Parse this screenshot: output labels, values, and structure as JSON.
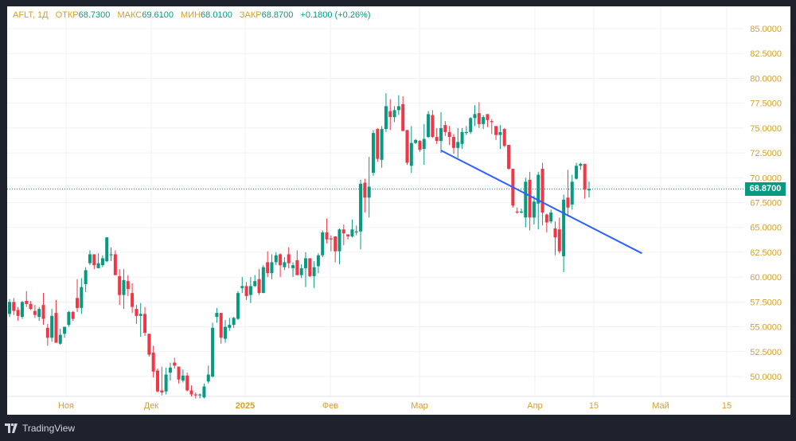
{
  "legend": {
    "symbol": "AFLT, 1Д",
    "open_label": "ОТКР",
    "open": "68.7300",
    "high_label": "МАКС",
    "high": "69.6100",
    "low_label": "МИН",
    "low": "68.0100",
    "close_label": "ЗАКР",
    "close": "68.8700",
    "change": "+0.1800 (+0.26%)"
  },
  "colors": {
    "up": "#089981",
    "down": "#f23645",
    "trendline": "#2962ff",
    "axis_text": "#d4a02a"
  },
  "last_price": "68.8700",
  "footer": {
    "brand": "TradingView"
  },
  "chart_data": {
    "type": "candlestick",
    "ylim": [
      47.3,
      86.3
    ],
    "price_ticks": [
      "85.0000",
      "82.5000",
      "80.0000",
      "77.5000",
      "75.0000",
      "72.5000",
      "70.0000",
      "67.5000",
      "65.0000",
      "62.5000",
      "60.0000",
      "57.5000",
      "55.0000",
      "52.5000",
      "50.0000"
    ],
    "time_labels": [
      "Ноя",
      "Дек",
      "2025",
      "Фев",
      "Мар",
      "Апр",
      "15",
      "Май",
      "15"
    ],
    "last_price": 68.87,
    "trendline": {
      "start_index": 102,
      "start_price": 72.75,
      "end_index": 149.5,
      "end_price": 62.4
    },
    "ohlc": [
      [
        56.3,
        57.8,
        56.0,
        57.5
      ],
      [
        57.5,
        57.9,
        56.2,
        56.6
      ],
      [
        56.7,
        57.0,
        55.6,
        56.1
      ],
      [
        56.0,
        57.6,
        55.8,
        57.5
      ],
      [
        57.6,
        58.6,
        57.0,
        57.3
      ],
      [
        57.3,
        57.6,
        56.7,
        56.8
      ],
      [
        56.6,
        57.2,
        55.9,
        56.2
      ],
      [
        56.0,
        57.0,
        55.6,
        56.8
      ],
      [
        57.2,
        58.4,
        55.2,
        55.8
      ],
      [
        54.9,
        55.3,
        53.1,
        53.9
      ],
      [
        53.9,
        56.8,
        53.5,
        56.1
      ],
      [
        56.4,
        57.7,
        53.4,
        53.4
      ],
      [
        53.3,
        54.8,
        53.2,
        54.2
      ],
      [
        54.3,
        55.0,
        53.9,
        55.0
      ],
      [
        55.2,
        56.6,
        55.0,
        56.5
      ],
      [
        56.5,
        56.6,
        55.6,
        55.8
      ],
      [
        57.9,
        59.8,
        56.5,
        56.9
      ],
      [
        56.9,
        59.9,
        56.3,
        59.0
      ],
      [
        59.3,
        61.0,
        58.5,
        60.7
      ],
      [
        61.4,
        62.7,
        61.2,
        62.3
      ],
      [
        62.3,
        62.3,
        60.8,
        61.2
      ],
      [
        60.9,
        62.4,
        60.9,
        61.4
      ],
      [
        61.2,
        62.2,
        61.0,
        61.9
      ],
      [
        61.6,
        64.0,
        61.5,
        64.0
      ],
      [
        62.2,
        63.0,
        61.6,
        62.3
      ],
      [
        62.3,
        62.7,
        60.2,
        60.2
      ],
      [
        60.1,
        60.8,
        57.2,
        58.2
      ],
      [
        58.2,
        60.8,
        56.8,
        59.7
      ],
      [
        59.6,
        60.2,
        58.1,
        58.8
      ],
      [
        58.4,
        59.4,
        56.4,
        57.0
      ],
      [
        56.8,
        57.2,
        55.3,
        56.1
      ],
      [
        56.1,
        57.4,
        54.0,
        56.3
      ],
      [
        56.3,
        57.0,
        54.1,
        54.4
      ],
      [
        54.3,
        54.3,
        52.0,
        52.2
      ],
      [
        52.4,
        53.1,
        49.9,
        50.5
      ],
      [
        50.6,
        50.8,
        48.4,
        48.5
      ],
      [
        48.6,
        51.0,
        48.1,
        48.4
      ],
      [
        48.5,
        50.9,
        48.2,
        50.2
      ],
      [
        50.4,
        51.4,
        49.6,
        50.9
      ],
      [
        51.4,
        51.9,
        50.8,
        51.1
      ],
      [
        51.0,
        51.0,
        49.3,
        49.7
      ],
      [
        49.6,
        50.7,
        49.4,
        50.1
      ],
      [
        50.1,
        50.4,
        48.5,
        48.6
      ],
      [
        48.6,
        49.1,
        48.0,
        48.2
      ],
      [
        48.2,
        48.4,
        47.8,
        48.1
      ],
      [
        48.1,
        48.3,
        47.8,
        48.2
      ],
      [
        47.9,
        49.3,
        47.8,
        49.0
      ],
      [
        49.5,
        51.1,
        49.3,
        50.2
      ],
      [
        50.0,
        55.4,
        49.9,
        54.9
      ],
      [
        56.0,
        56.9,
        55.4,
        56.4
      ],
      [
        56.4,
        56.4,
        53.3,
        53.9
      ],
      [
        53.8,
        55.7,
        53.4,
        55.0
      ],
      [
        54.9,
        55.9,
        54.6,
        55.2
      ],
      [
        55.2,
        56.0,
        54.9,
        55.9
      ],
      [
        55.8,
        58.6,
        55.7,
        58.4
      ],
      [
        58.9,
        60.0,
        58.4,
        59.1
      ],
      [
        59.1,
        59.5,
        57.7,
        58.1
      ],
      [
        58.2,
        60.0,
        57.4,
        59.1
      ],
      [
        59.1,
        60.2,
        59.0,
        59.6
      ],
      [
        59.8,
        60.8,
        58.2,
        58.4
      ],
      [
        58.4,
        61.2,
        58.4,
        61.0
      ],
      [
        61.5,
        62.6,
        60.0,
        60.4
      ],
      [
        60.4,
        62.3,
        59.8,
        61.5
      ],
      [
        61.5,
        62.5,
        61.2,
        62.2
      ],
      [
        62.3,
        62.4,
        60.0,
        61.2
      ],
      [
        61.0,
        62.0,
        60.7,
        61.5
      ],
      [
        62.3,
        63.0,
        60.9,
        61.4
      ],
      [
        60.9,
        61.5,
        60.0,
        61.2
      ],
      [
        61.7,
        62.7,
        60.2,
        60.2
      ],
      [
        60.2,
        61.3,
        59.9,
        60.9
      ],
      [
        60.9,
        62.5,
        59.0,
        61.9
      ],
      [
        61.9,
        61.9,
        60.0,
        60.1
      ],
      [
        60.1,
        61.6,
        58.9,
        61.0
      ],
      [
        61.1,
        62.4,
        60.4,
        62.2
      ],
      [
        62.2,
        64.7,
        62.0,
        64.5
      ],
      [
        64.5,
        65.9,
        63.4,
        63.8
      ],
      [
        63.9,
        64.2,
        62.6,
        63.8
      ],
      [
        64.1,
        64.1,
        61.5,
        62.6
      ],
      [
        62.6,
        64.9,
        61.3,
        64.8
      ],
      [
        64.8,
        65.3,
        63.2,
        64.4
      ],
      [
        64.3,
        64.3,
        63.8,
        64.1
      ],
      [
        64.1,
        65.8,
        64.0,
        64.8
      ],
      [
        64.5,
        65.2,
        64.2,
        64.6
      ],
      [
        64.6,
        69.8,
        62.8,
        69.4
      ],
      [
        69.5,
        69.9,
        66.5,
        68.0
      ],
      [
        68.0,
        72.1,
        66.0,
        69.1
      ],
      [
        70.5,
        74.8,
        70.2,
        74.5
      ],
      [
        74.9,
        75.0,
        71.6,
        71.9
      ],
      [
        71.8,
        75.2,
        71.0,
        74.9
      ],
      [
        74.9,
        78.5,
        74.6,
        77.2
      ],
      [
        76.7,
        77.9,
        74.8,
        76.1
      ],
      [
        76.1,
        77.2,
        75.6,
        76.8
      ],
      [
        76.8,
        78.3,
        76.3,
        77.2
      ],
      [
        77.4,
        78.2,
        74.7,
        74.7
      ],
      [
        74.8,
        74.8,
        71.3,
        71.5
      ],
      [
        71.2,
        75.2,
        70.5,
        73.5
      ],
      [
        73.5,
        73.9,
        73.4,
        73.8
      ],
      [
        73.7,
        73.8,
        72.6,
        72.8
      ],
      [
        72.9,
        75.4,
        71.3,
        73.9
      ],
      [
        74.1,
        76.7,
        74.0,
        76.4
      ],
      [
        76.3,
        76.8,
        74.0,
        74.1
      ],
      [
        74.1,
        75.0,
        73.4,
        73.7
      ],
      [
        73.7,
        76.6,
        72.5,
        75.0
      ],
      [
        75.3,
        75.7,
        74.2,
        74.6
      ],
      [
        74.6,
        75.2,
        73.3,
        74.1
      ],
      [
        74.1,
        74.4,
        72.4,
        73.0
      ],
      [
        73.0,
        75.0,
        72.0,
        73.6
      ],
      [
        73.4,
        75.0,
        72.9,
        74.6
      ],
      [
        74.5,
        75.2,
        74.3,
        74.6
      ],
      [
        74.6,
        76.1,
        74.4,
        76.0
      ],
      [
        76.0,
        77.3,
        75.2,
        76.4
      ],
      [
        76.5,
        77.6,
        75.0,
        75.4
      ],
      [
        75.4,
        76.3,
        74.9,
        76.1
      ],
      [
        76.4,
        76.4,
        75.1,
        75.8
      ],
      [
        75.7,
        75.9,
        74.4,
        75.6
      ],
      [
        75.2,
        75.2,
        73.8,
        74.3
      ],
      [
        74.3,
        75.3,
        72.9,
        74.6
      ],
      [
        74.9,
        75.0,
        73.1,
        73.2
      ],
      [
        73.3,
        73.3,
        70.8,
        70.9
      ],
      [
        70.9,
        70.9,
        67.0,
        67.2
      ],
      [
        66.6,
        67.0,
        66.4,
        66.5
      ],
      [
        66.5,
        66.9,
        66.4,
        66.6
      ],
      [
        66.0,
        70.0,
        65.0,
        69.6
      ],
      [
        69.8,
        70.6,
        64.7,
        66.0
      ],
      [
        66.0,
        68.2,
        65.3,
        67.6
      ],
      [
        67.4,
        70.6,
        64.8,
        70.3
      ],
      [
        70.9,
        71.5,
        65.2,
        66.5
      ],
      [
        66.3,
        66.4,
        64.5,
        65.5
      ],
      [
        65.6,
        66.8,
        65.4,
        66.5
      ],
      [
        64.9,
        65.6,
        62.2,
        64.0
      ],
      [
        64.8,
        66.0,
        62.4,
        62.6
      ],
      [
        62.1,
        68.3,
        60.5,
        67.8
      ],
      [
        68.0,
        70.8,
        66.1,
        67.0
      ],
      [
        67.3,
        70.3,
        66.8,
        69.6
      ],
      [
        69.9,
        71.5,
        69.8,
        71.2
      ],
      [
        71.2,
        71.5,
        70.8,
        71.4
      ],
      [
        71.4,
        71.4,
        67.9,
        68.8
      ],
      [
        68.73,
        69.61,
        68.01,
        68.87
      ]
    ]
  }
}
